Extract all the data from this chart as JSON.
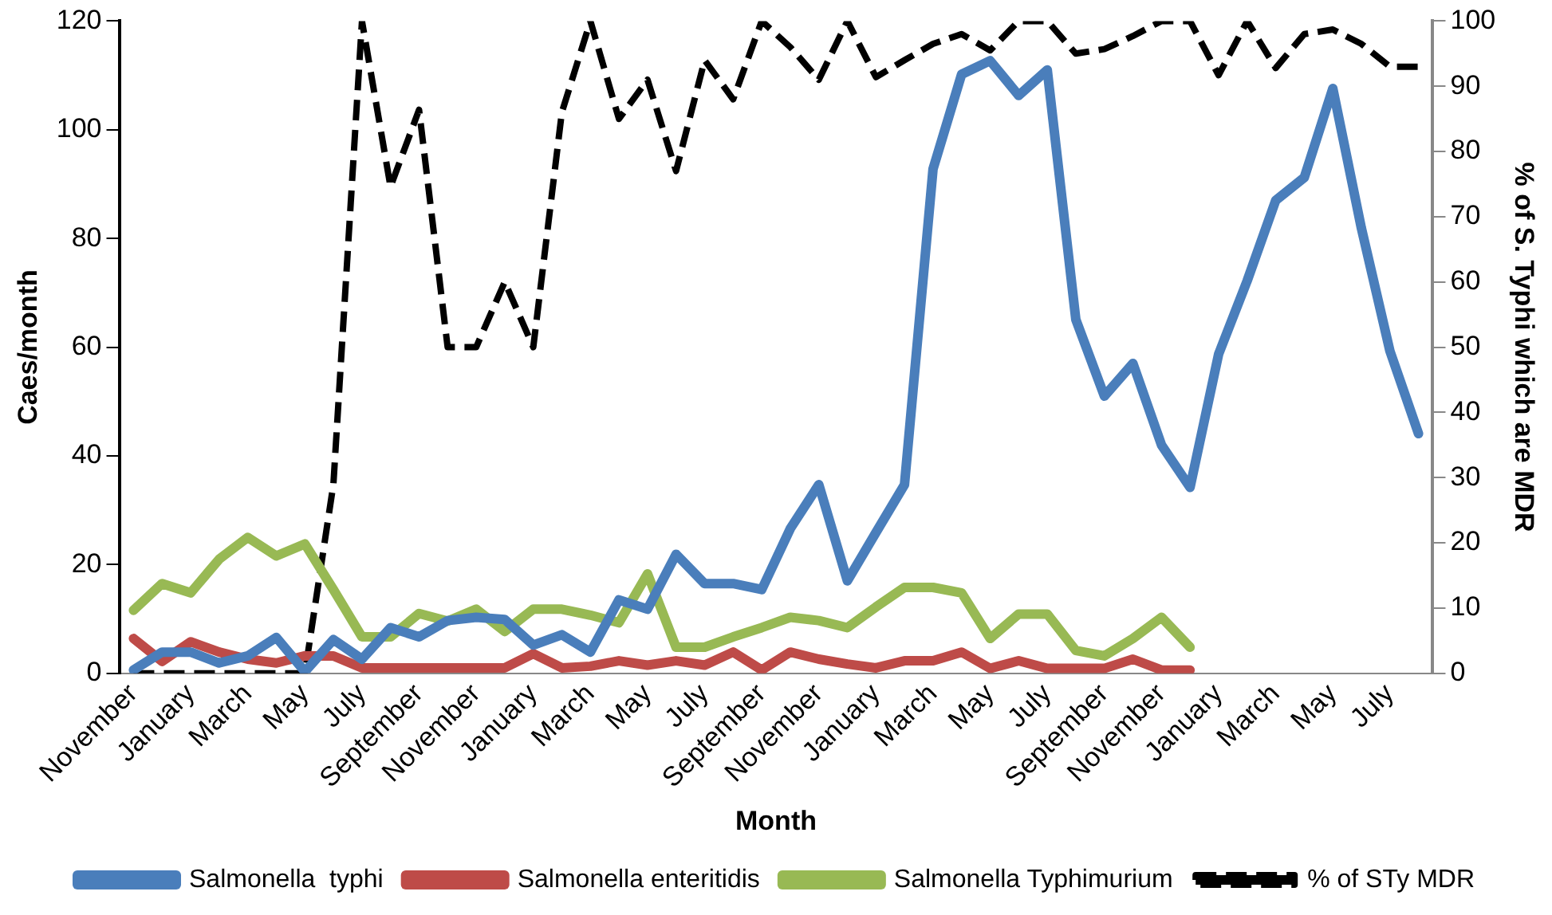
{
  "chart_data": {
    "type": "line",
    "xlabel": "Month",
    "ylabel": "Caes/month",
    "y2label": "% of S. Typhi which are MDR",
    "categories": [
      "November",
      null,
      "January",
      null,
      "March",
      null,
      "May",
      null,
      "July",
      null,
      "September",
      null,
      "November",
      null,
      "January",
      null,
      "March",
      null,
      "May",
      null,
      "July",
      null,
      "September",
      null,
      "November",
      null,
      "January",
      null,
      "March",
      null,
      "May",
      null,
      "July",
      null,
      "September",
      null,
      "November",
      null,
      "January",
      null,
      "March",
      null,
      "May",
      null,
      "July",
      null
    ],
    "ylim": [
      0,
      120
    ],
    "yticks": [
      0,
      20,
      40,
      60,
      80,
      100,
      120
    ],
    "y2lim": [
      0,
      100
    ],
    "y2ticks": [
      0,
      10,
      20,
      30,
      40,
      50,
      60,
      70,
      80,
      90,
      100
    ],
    "legend": "bottom",
    "series": [
      {
        "name": "Salmonella  typhi",
        "color": "#4a7ebb",
        "values": [
          0.6,
          3.9,
          3.9,
          1.9,
          3.2,
          6.6,
          0.3,
          6.2,
          2.6,
          8.4,
          6.7,
          9.7,
          10.3,
          9.9,
          5.2,
          7.1,
          3.9,
          13.5,
          11.8,
          21.9,
          16.5,
          16.5,
          15.4,
          26.6,
          34.7,
          17,
          25.9,
          34.7,
          92.8,
          110.2,
          112.7,
          106.3,
          111,
          65.1,
          51,
          57,
          42,
          34.2,
          58.7,
          72.2,
          87,
          91.2,
          107.6,
          81.9,
          59.3,
          44.1
        ]
      },
      {
        "name": "Salmonella enteritidis",
        "color": "#be4b48",
        "values": [
          6.4,
          2.2,
          5.8,
          3.9,
          2.6,
          1.9,
          3.2,
          3.2,
          1,
          1,
          1,
          1,
          1,
          1,
          3.6,
          1,
          1.3,
          2.3,
          1.5,
          2.3,
          1.5,
          3.9,
          0.6,
          3.9,
          2.6,
          1.7,
          1,
          2.3,
          2.3,
          3.9,
          0.9,
          2.3,
          0.9,
          0.9,
          0.9,
          2.6,
          0.6,
          0.6,
          null,
          null,
          null,
          null,
          null,
          null,
          null,
          null
        ]
      },
      {
        "name": "Salmonella Typhimurium",
        "color": "#98b954",
        "values": [
          11.6,
          16.5,
          14.8,
          21,
          25,
          21.6,
          23.8,
          15.4,
          6.7,
          6.7,
          11,
          9.6,
          11.8,
          7.7,
          11.8,
          11.8,
          10.7,
          9.3,
          18.3,
          4.8,
          4.8,
          6.7,
          8.4,
          10.3,
          9.7,
          8.4,
          12.2,
          15.8,
          15.8,
          14.8,
          6.4,
          10.9,
          10.9,
          4.2,
          3.2,
          6.4,
          10.3,
          4.8,
          null,
          null,
          null,
          null,
          null,
          null,
          null,
          null
        ]
      },
      {
        "name": "% of STy MDR",
        "color": "#000000",
        "axis": "y2",
        "line_style": "dashed",
        "values": [
          0,
          0,
          0,
          0,
          0,
          0,
          0,
          29,
          100,
          74.6,
          86.4,
          50,
          50,
          60,
          50,
          86,
          100,
          85,
          91,
          77,
          94,
          88,
          100,
          96,
          91,
          100,
          91.4,
          94,
          96.5,
          98,
          95.5,
          100,
          100,
          95,
          95.7,
          97.7,
          100,
          100,
          91.7,
          100,
          92.8,
          98,
          98.7,
          96.5,
          93,
          93
        ]
      }
    ]
  }
}
